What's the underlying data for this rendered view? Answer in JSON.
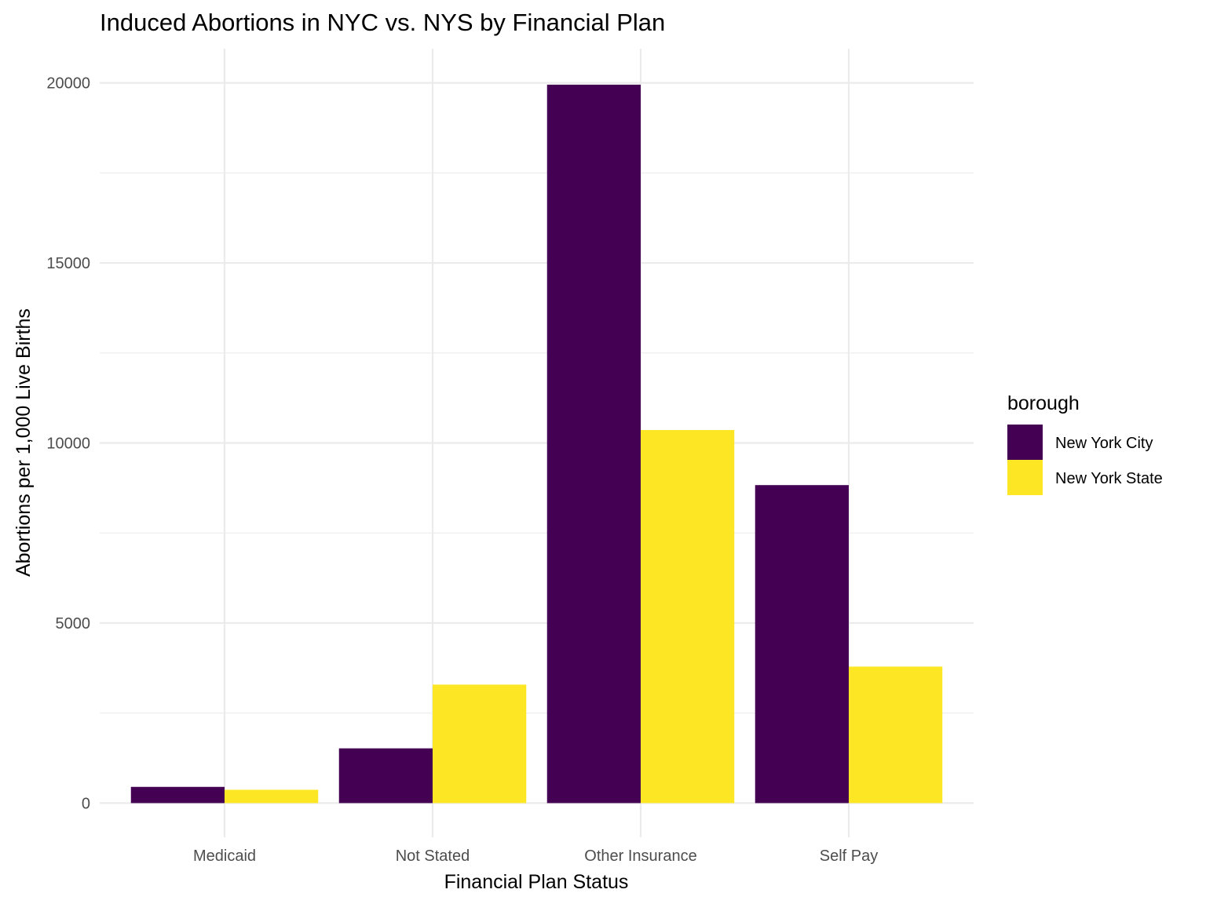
{
  "chart_data": {
    "type": "bar",
    "title": "Induced Abortions in NYC vs. NYS by Financial Plan",
    "xlabel": "Financial Plan Status",
    "ylabel": "Abortions per 1,000 Live Births",
    "categories": [
      "Medicaid",
      "Not Stated",
      "Other Insurance",
      "Self Pay"
    ],
    "series": [
      {
        "name": "New York City",
        "color": "#440154",
        "values": [
          450,
          1520,
          19950,
          8830
        ]
      },
      {
        "name": "New York State",
        "color": "#FDE725",
        "values": [
          370,
          3290,
          10360,
          3790
        ]
      }
    ],
    "yticks": [
      "0",
      "5000",
      "10000",
      "15000",
      "20000"
    ],
    "ylim": [
      -950,
      20950
    ],
    "grid": true,
    "legend": {
      "title": "borough",
      "position": "right"
    }
  }
}
